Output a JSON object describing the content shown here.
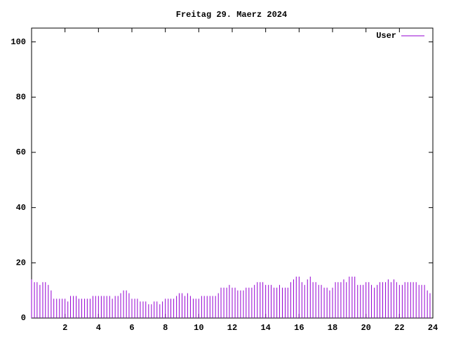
{
  "chart_data": {
    "type": "impulse",
    "title": "Freitag 29. Maerz 2024",
    "series": [
      {
        "name": "User",
        "color": "#9400d3",
        "x": [
          0,
          0.17,
          0.33,
          0.5,
          0.67,
          0.83,
          1,
          1.17,
          1.33,
          1.5,
          1.67,
          1.83,
          2,
          2.17,
          2.33,
          2.5,
          2.67,
          2.83,
          3,
          3.17,
          3.33,
          3.5,
          3.67,
          3.83,
          4,
          4.17,
          4.33,
          4.5,
          4.67,
          4.83,
          5,
          5.17,
          5.33,
          5.5,
          5.67,
          5.83,
          6,
          6.17,
          6.33,
          6.5,
          6.67,
          6.83,
          7,
          7.17,
          7.33,
          7.5,
          7.67,
          7.83,
          8,
          8.17,
          8.33,
          8.5,
          8.67,
          8.83,
          9,
          9.17,
          9.33,
          9.5,
          9.67,
          9.83,
          10,
          10.17,
          10.33,
          10.5,
          10.67,
          10.83,
          11,
          11.17,
          11.33,
          11.5,
          11.67,
          11.83,
          12,
          12.17,
          12.33,
          12.5,
          12.67,
          12.83,
          13,
          13.17,
          13.33,
          13.5,
          13.67,
          13.83,
          14,
          14.17,
          14.33,
          14.5,
          14.67,
          14.83,
          15,
          15.17,
          15.33,
          15.5,
          15.67,
          15.83,
          16,
          16.17,
          16.33,
          16.5,
          16.67,
          16.83,
          17,
          17.17,
          17.33,
          17.5,
          17.67,
          17.83,
          18,
          18.17,
          18.33,
          18.5,
          18.67,
          18.83,
          19,
          19.17,
          19.33,
          19.5,
          19.67,
          19.83,
          20,
          20.17,
          20.33,
          20.5,
          20.67,
          20.83,
          21,
          21.17,
          21.33,
          21.5,
          21.67,
          21.83,
          22,
          22.17,
          22.33,
          22.5,
          22.67,
          22.83,
          23,
          23.17,
          23.33,
          23.5,
          23.67,
          23.83
        ],
        "values": [
          14,
          13,
          13,
          12,
          13,
          13,
          12,
          10,
          7,
          7,
          7,
          7,
          7,
          6,
          8,
          8,
          8,
          7,
          7,
          7,
          7,
          7,
          8,
          8,
          8,
          8,
          8,
          8,
          8,
          7,
          8,
          8,
          9,
          10,
          10,
          9,
          7,
          7,
          7,
          6,
          6,
          6,
          5,
          5,
          6,
          6,
          5,
          6,
          7,
          7,
          7,
          7,
          8,
          9,
          9,
          8,
          9,
          8,
          7,
          7,
          7,
          8,
          8,
          8,
          8,
          8,
          8,
          9,
          11,
          11,
          11,
          12,
          11,
          11,
          10,
          10,
          10,
          11,
          11,
          11,
          12,
          13,
          13,
          13,
          12,
          12,
          12,
          11,
          11,
          12,
          11,
          11,
          11,
          13,
          14,
          15,
          15,
          13,
          12,
          14,
          15,
          13,
          13,
          12,
          12,
          11,
          11,
          10,
          11,
          13,
          13,
          13,
          14,
          13,
          15,
          15,
          15,
          12,
          12,
          12,
          13,
          13,
          12,
          11,
          12,
          13,
          13,
          13,
          14,
          13,
          14,
          13,
          12,
          12,
          13,
          13,
          13,
          13,
          13,
          12,
          12,
          12,
          10,
          9
        ]
      }
    ],
    "xlim": [
      0,
      24
    ],
    "xticks": [
      2,
      4,
      6,
      8,
      10,
      12,
      14,
      16,
      18,
      20,
      22,
      24
    ],
    "ylim": [
      0,
      105
    ],
    "yticks": [
      0,
      20,
      40,
      60,
      80,
      100
    ],
    "legend": "top-right"
  }
}
